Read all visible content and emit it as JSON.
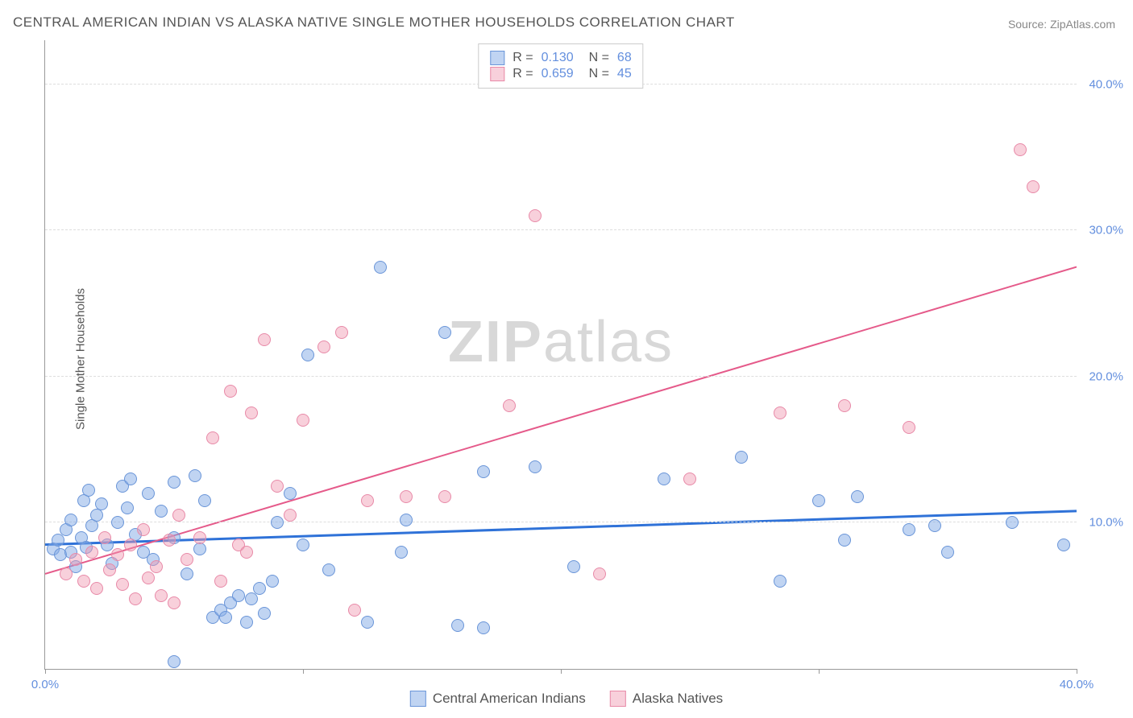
{
  "title": "CENTRAL AMERICAN INDIAN VS ALASKA NATIVE SINGLE MOTHER HOUSEHOLDS CORRELATION CHART",
  "source": "Source: ZipAtlas.com",
  "y_axis_label": "Single Mother Households",
  "watermark": {
    "part1": "ZIP",
    "part2": "atlas"
  },
  "chart": {
    "type": "scatter",
    "xlim": [
      0,
      40
    ],
    "ylim": [
      0,
      43
    ],
    "x_ticks": [
      0,
      10,
      20,
      30,
      40
    ],
    "x_tick_labels": [
      "0.0%",
      "",
      "",
      "",
      "40.0%"
    ],
    "y_ticks": [
      10,
      20,
      30,
      40
    ],
    "y_tick_labels": [
      "10.0%",
      "20.0%",
      "30.0%",
      "40.0%"
    ],
    "grid_color": "#dddddd",
    "grid_style": "dashed",
    "background_color": "#ffffff",
    "axis_color": "#999999",
    "marker_size": 16,
    "marker_opacity": 0.5,
    "series": [
      {
        "name": "Central American Indians",
        "color_fill": "#82aae6",
        "color_border": "#6a95d8",
        "r": "0.130",
        "n": "68",
        "trendline": {
          "y_start": 8.5,
          "y_end": 10.8,
          "color": "#2f72d8",
          "width": 3
        },
        "points": [
          [
            0.3,
            8.2
          ],
          [
            0.5,
            8.8
          ],
          [
            0.6,
            7.8
          ],
          [
            0.8,
            9.5
          ],
          [
            1.0,
            8.0
          ],
          [
            1.0,
            10.2
          ],
          [
            1.2,
            7.0
          ],
          [
            1.4,
            9.0
          ],
          [
            1.5,
            11.5
          ],
          [
            1.6,
            8.3
          ],
          [
            1.8,
            9.8
          ],
          [
            2.0,
            10.5
          ],
          [
            1.7,
            12.2
          ],
          [
            2.2,
            11.3
          ],
          [
            2.4,
            8.5
          ],
          [
            2.6,
            7.2
          ],
          [
            2.8,
            10.0
          ],
          [
            3.0,
            12.5
          ],
          [
            3.2,
            11.0
          ],
          [
            3.5,
            9.2
          ],
          [
            3.3,
            13.0
          ],
          [
            3.8,
            8.0
          ],
          [
            4.0,
            12.0
          ],
          [
            4.2,
            7.5
          ],
          [
            4.5,
            10.8
          ],
          [
            5.0,
            9.0
          ],
          [
            5.0,
            12.8
          ],
          [
            5.5,
            6.5
          ],
          [
            5.8,
            13.2
          ],
          [
            6.0,
            8.2
          ],
          [
            6.2,
            11.5
          ],
          [
            6.5,
            3.5
          ],
          [
            6.8,
            4.0
          ],
          [
            7.0,
            3.5
          ],
          [
            7.2,
            4.5
          ],
          [
            7.5,
            5.0
          ],
          [
            7.8,
            3.2
          ],
          [
            8.0,
            4.8
          ],
          [
            8.3,
            5.5
          ],
          [
            8.5,
            3.8
          ],
          [
            8.8,
            6.0
          ],
          [
            9.0,
            10.0
          ],
          [
            9.5,
            12.0
          ],
          [
            10.0,
            8.5
          ],
          [
            10.2,
            21.5
          ],
          [
            11.0,
            6.8
          ],
          [
            12.5,
            3.2
          ],
          [
            13.0,
            27.5
          ],
          [
            13.8,
            8.0
          ],
          [
            14.0,
            10.2
          ],
          [
            15.5,
            23.0
          ],
          [
            16.0,
            3.0
          ],
          [
            17.0,
            13.5
          ],
          [
            17.0,
            2.8
          ],
          [
            19.0,
            13.8
          ],
          [
            20.5,
            7.0
          ],
          [
            24.0,
            13.0
          ],
          [
            27.0,
            14.5
          ],
          [
            28.5,
            6.0
          ],
          [
            30.0,
            11.5
          ],
          [
            31.0,
            8.8
          ],
          [
            31.5,
            11.8
          ],
          [
            33.5,
            9.5
          ],
          [
            34.5,
            9.8
          ],
          [
            35.0,
            8.0
          ],
          [
            37.5,
            10.0
          ],
          [
            39.5,
            8.5
          ],
          [
            5.0,
            0.5
          ]
        ]
      },
      {
        "name": "Alaska Natives",
        "color_fill": "#f096af",
        "color_border": "#e88aa8",
        "r": "0.659",
        "n": "45",
        "trendline": {
          "y_start": 6.5,
          "y_end": 27.5,
          "color": "#e55a8a",
          "width": 2
        },
        "points": [
          [
            0.8,
            6.5
          ],
          [
            1.2,
            7.5
          ],
          [
            1.5,
            6.0
          ],
          [
            1.8,
            8.0
          ],
          [
            2.0,
            5.5
          ],
          [
            2.3,
            9.0
          ],
          [
            2.5,
            6.8
          ],
          [
            2.8,
            7.8
          ],
          [
            3.0,
            5.8
          ],
          [
            3.3,
            8.5
          ],
          [
            3.5,
            4.8
          ],
          [
            3.8,
            9.5
          ],
          [
            4.0,
            6.2
          ],
          [
            4.3,
            7.0
          ],
          [
            4.5,
            5.0
          ],
          [
            4.8,
            8.8
          ],
          [
            5.2,
            10.5
          ],
          [
            5.5,
            7.5
          ],
          [
            6.0,
            9.0
          ],
          [
            6.5,
            15.8
          ],
          [
            7.2,
            19.0
          ],
          [
            7.5,
            8.5
          ],
          [
            8.0,
            17.5
          ],
          [
            8.5,
            22.5
          ],
          [
            9.0,
            12.5
          ],
          [
            9.5,
            10.5
          ],
          [
            10.0,
            17.0
          ],
          [
            10.8,
            22.0
          ],
          [
            11.5,
            23.0
          ],
          [
            12.0,
            4.0
          ],
          [
            12.5,
            11.5
          ],
          [
            14.0,
            11.8
          ],
          [
            15.5,
            11.8
          ],
          [
            18.0,
            18.0
          ],
          [
            19.0,
            31.0
          ],
          [
            21.5,
            6.5
          ],
          [
            25.0,
            13.0
          ],
          [
            28.5,
            17.5
          ],
          [
            31.0,
            18.0
          ],
          [
            33.5,
            16.5
          ],
          [
            37.8,
            35.5
          ],
          [
            38.3,
            33.0
          ],
          [
            7.8,
            8.0
          ],
          [
            6.8,
            6.0
          ],
          [
            5.0,
            4.5
          ]
        ]
      }
    ]
  },
  "legend_bottom": [
    {
      "label": "Central American Indians",
      "series": 0
    },
    {
      "label": "Alaska Natives",
      "series": 1
    }
  ]
}
